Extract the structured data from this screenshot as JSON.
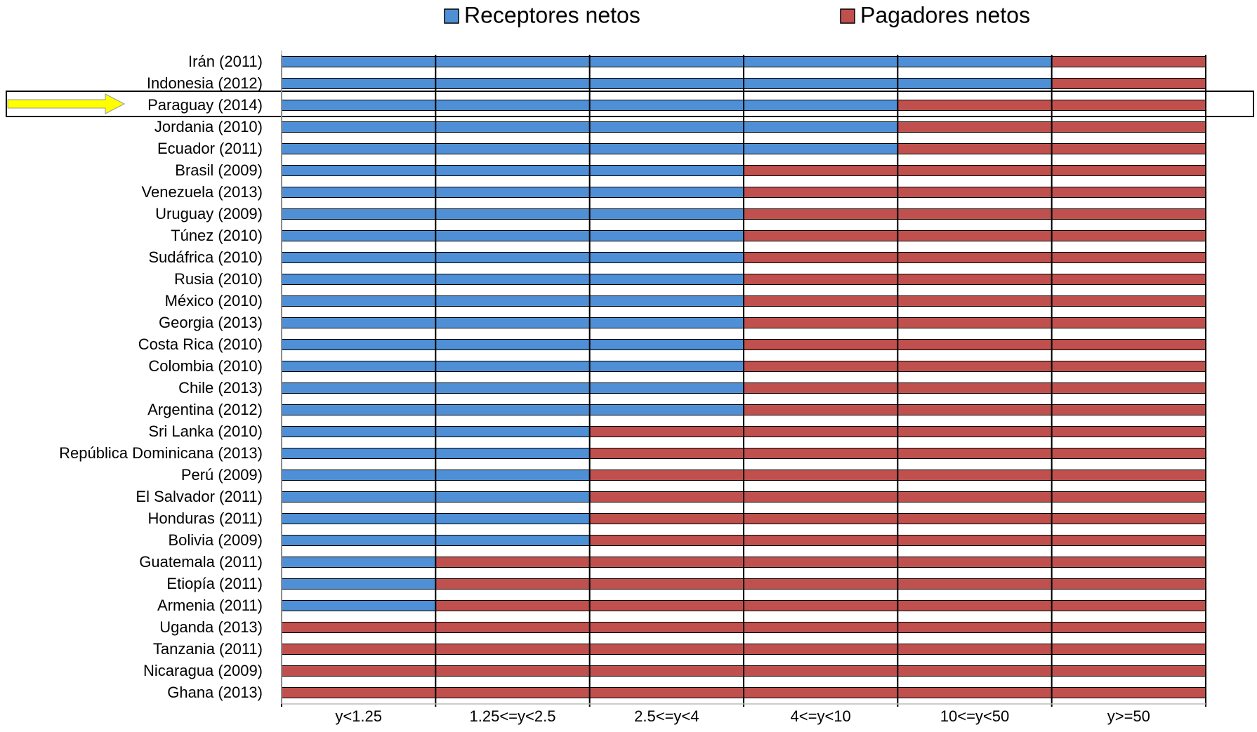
{
  "chart_data": {
    "type": "bar",
    "orientation": "horizontal",
    "stacked": true,
    "categories": [
      "Irán (2011)",
      "Indonesia (2012)",
      "Paraguay (2014)",
      "Jordania (2010)",
      "Ecuador (2011)",
      "Brasil (2009)",
      "Venezuela (2013)",
      "Uruguay (2009)",
      "Túnez (2010)",
      "Sudáfrica (2010)",
      "Rusia (2010)",
      "México (2010)",
      "Georgia (2013)",
      "Costa Rica (2010)",
      "Colombia (2010)",
      "Chile (2013)",
      "Argentina (2012)",
      "Sri Lanka (2010)",
      "República Dominicana (2013)",
      "Perú (2009)",
      "El Salvador (2011)",
      "Honduras (2011)",
      "Bolivia (2009)",
      "Guatemala (2011)",
      "Etiopía (2011)",
      "Armenia (2011)",
      "Uganda (2013)",
      "Tanzania (2011)",
      "Nicaragua (2009)",
      "Ghana (2013)"
    ],
    "series": [
      {
        "name": "Receptores netos",
        "color": "#4f8fd6",
        "values": [
          5,
          5,
          4,
          4,
          4,
          3,
          3,
          3,
          3,
          3,
          3,
          3,
          3,
          3,
          3,
          3,
          3,
          2,
          2,
          2,
          2,
          2,
          2,
          1,
          1,
          1,
          0,
          0,
          0,
          0
        ]
      },
      {
        "name": "Pagadores netos",
        "color": "#c0504d",
        "values": [
          1,
          1,
          2,
          2,
          2,
          3,
          3,
          3,
          3,
          3,
          3,
          3,
          3,
          3,
          3,
          3,
          3,
          4,
          4,
          4,
          4,
          4,
          4,
          5,
          5,
          5,
          6,
          6,
          6,
          6
        ]
      }
    ],
    "x_bands": [
      "y<1.25",
      "1.25<=y<2.5",
      "2.5<=y<4",
      "4<=y<10",
      "10<=y<50",
      "y>=50"
    ],
    "xlim": [
      0,
      6
    ],
    "legend": "top"
  }
}
